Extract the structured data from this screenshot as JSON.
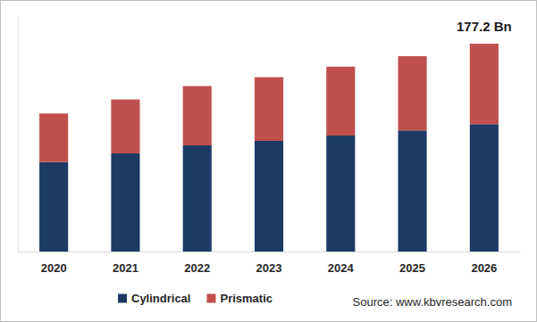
{
  "chart_data": {
    "type": "bar",
    "categories": [
      "2020",
      "2021",
      "2022",
      "2023",
      "2024",
      "2025",
      "2026"
    ],
    "series": [
      {
        "name": "Cylindrical",
        "color": "#1c3a64",
        "values": [
          76.2,
          83.7,
          90.5,
          94.3,
          98.8,
          103.3,
          108.6
        ]
      },
      {
        "name": "Prismatic",
        "color": "#c0504d",
        "values": [
          41.5,
          46.0,
          50.5,
          54.3,
          58.8,
          63.3,
          68.6
        ]
      }
    ],
    "stacked": true,
    "ylim": [
      0,
      200
    ],
    "yticks": [],
    "grid": false,
    "tick_labels": "x",
    "legend": "bottom-left",
    "annotations": [
      {
        "text": "177.2 Bn",
        "x": "2026"
      }
    ],
    "source": "Source: www.kbvresearch.com"
  }
}
